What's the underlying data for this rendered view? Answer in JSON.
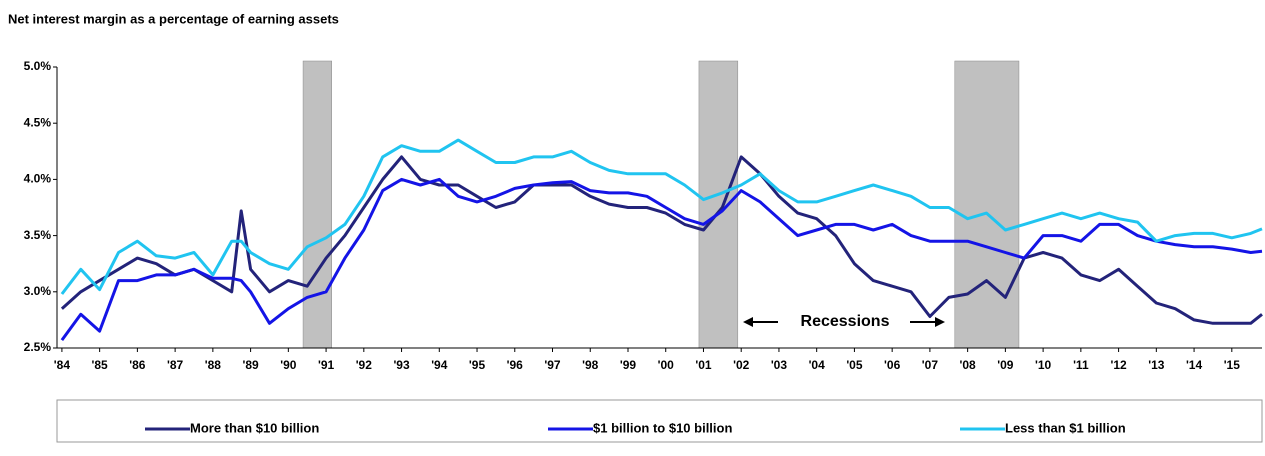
{
  "chart_data": {
    "type": "line",
    "title": "Net interest margin as a percentage of earning assets",
    "annotation": "Recessions",
    "recessions": [
      [
        1990.39,
        1991.15
      ],
      [
        2000.88,
        2001.91
      ],
      [
        2007.66,
        2009.36
      ]
    ],
    "x": [
      1984,
      1984.5,
      1985,
      1985.5,
      1986,
      1986.5,
      1987,
      1987.5,
      1988,
      1988.5,
      1988.75,
      1989,
      1989.5,
      1990,
      1990.5,
      1991,
      1991.5,
      1992,
      1992.5,
      1993,
      1993.5,
      1994,
      1994.5,
      1995,
      1995.5,
      1996,
      1996.5,
      1997,
      1997.5,
      1998,
      1998.5,
      1999,
      1999.5,
      2000,
      2000.5,
      2001,
      2001.5,
      2002,
      2002.5,
      2003,
      2003.5,
      2004,
      2004.5,
      2005,
      2005.5,
      2006,
      2006.5,
      2007,
      2007.5,
      2008,
      2008.5,
      2009,
      2009.5,
      2010,
      2010.5,
      2011,
      2011.5,
      2012,
      2012.5,
      2013,
      2013.5,
      2014,
      2014.5,
      2015,
      2015.5,
      2015.8
    ],
    "series": [
      {
        "name": "More than $10 billion",
        "color": "#23237a",
        "values": [
          2.85,
          3.0,
          3.1,
          3.2,
          3.3,
          3.25,
          3.15,
          3.2,
          3.1,
          3.0,
          3.72,
          3.2,
          3.0,
          3.1,
          3.05,
          3.3,
          3.5,
          3.75,
          4.0,
          4.2,
          4.0,
          3.95,
          3.95,
          3.85,
          3.75,
          3.8,
          3.95,
          3.95,
          3.95,
          3.85,
          3.78,
          3.75,
          3.75,
          3.7,
          3.6,
          3.55,
          3.75,
          4.2,
          4.05,
          3.85,
          3.7,
          3.65,
          3.5,
          3.25,
          3.1,
          3.05,
          3.0,
          2.78,
          2.95,
          2.98,
          3.1,
          2.95,
          3.3,
          3.35,
          3.3,
          3.15,
          3.1,
          3.2,
          3.05,
          2.9,
          2.85,
          2.75,
          2.72,
          2.72,
          2.72,
          2.8
        ]
      },
      {
        "name": "$1 billion to $10 billion",
        "color": "#1414e6",
        "values": [
          2.57,
          2.8,
          2.65,
          3.1,
          3.1,
          3.15,
          3.15,
          3.2,
          3.12,
          3.12,
          3.1,
          3.0,
          2.72,
          2.85,
          2.95,
          3.0,
          3.3,
          3.55,
          3.9,
          4.0,
          3.95,
          4.0,
          3.85,
          3.8,
          3.85,
          3.92,
          3.95,
          3.97,
          3.98,
          3.9,
          3.88,
          3.88,
          3.85,
          3.75,
          3.65,
          3.6,
          3.72,
          3.9,
          3.8,
          3.65,
          3.5,
          3.55,
          3.6,
          3.6,
          3.55,
          3.6,
          3.5,
          3.45,
          3.45,
          3.45,
          3.4,
          3.35,
          3.3,
          3.5,
          3.5,
          3.45,
          3.6,
          3.6,
          3.5,
          3.45,
          3.42,
          3.4,
          3.4,
          3.38,
          3.35,
          3.36
        ]
      },
      {
        "name": "Less than $1 billion",
        "color": "#20c4f0",
        "values": [
          2.98,
          3.2,
          3.02,
          3.35,
          3.45,
          3.32,
          3.3,
          3.35,
          3.15,
          3.45,
          3.45,
          3.35,
          3.25,
          3.2,
          3.4,
          3.48,
          3.6,
          3.85,
          4.2,
          4.3,
          4.25,
          4.25,
          4.35,
          4.25,
          4.15,
          4.15,
          4.2,
          4.2,
          4.25,
          4.15,
          4.08,
          4.05,
          4.05,
          4.05,
          3.95,
          3.82,
          3.88,
          3.95,
          4.05,
          3.9,
          3.8,
          3.8,
          3.85,
          3.9,
          3.95,
          3.9,
          3.85,
          3.75,
          3.75,
          3.65,
          3.7,
          3.55,
          3.6,
          3.65,
          3.7,
          3.65,
          3.7,
          3.65,
          3.62,
          3.45,
          3.5,
          3.52,
          3.52,
          3.48,
          3.52,
          3.56
        ]
      }
    ],
    "xlim": [
      1983.87,
      2015.8
    ],
    "xticks": [
      {
        "value": 1984,
        "label": "'84"
      },
      {
        "value": 1985,
        "label": "'85"
      },
      {
        "value": 1986,
        "label": "'86"
      },
      {
        "value": 1987,
        "label": "'87"
      },
      {
        "value": 1988,
        "label": "'88"
      },
      {
        "value": 1989,
        "label": "'89"
      },
      {
        "value": 1990,
        "label": "'90"
      },
      {
        "value": 1991,
        "label": "'91"
      },
      {
        "value": 1992,
        "label": "'92"
      },
      {
        "value": 1993,
        "label": "'93"
      },
      {
        "value": 1994,
        "label": "'94"
      },
      {
        "value": 1995,
        "label": "'95"
      },
      {
        "value": 1996,
        "label": "'96"
      },
      {
        "value": 1997,
        "label": "'97"
      },
      {
        "value": 1998,
        "label": "'98"
      },
      {
        "value": 1999,
        "label": "'99"
      },
      {
        "value": 2000,
        "label": "'00"
      },
      {
        "value": 2001,
        "label": "'01"
      },
      {
        "value": 2002,
        "label": "'02"
      },
      {
        "value": 2003,
        "label": "'03"
      },
      {
        "value": 2004,
        "label": "'04"
      },
      {
        "value": 2005,
        "label": "'05"
      },
      {
        "value": 2006,
        "label": "'06"
      },
      {
        "value": 2007,
        "label": "'07"
      },
      {
        "value": 2008,
        "label": "'08"
      },
      {
        "value": 2009,
        "label": "'09"
      },
      {
        "value": 2010,
        "label": "'10"
      },
      {
        "value": 2011,
        "label": "'11"
      },
      {
        "value": 2012,
        "label": "'12"
      },
      {
        "value": 2013,
        "label": "'13"
      },
      {
        "value": 2014,
        "label": "'14"
      },
      {
        "value": 2015,
        "label": "'15"
      }
    ],
    "ylim": [
      2.5,
      5.0
    ],
    "yticks": [
      {
        "value": 2.5,
        "label": "2.5%"
      },
      {
        "value": 3.0,
        "label": "3.0%"
      },
      {
        "value": 3.5,
        "label": "3.5%"
      },
      {
        "value": 4.0,
        "label": "4.0%"
      },
      {
        "value": 4.5,
        "label": "4.5%"
      },
      {
        "value": 5.0,
        "label": "5.0%"
      }
    ],
    "grid": false
  }
}
